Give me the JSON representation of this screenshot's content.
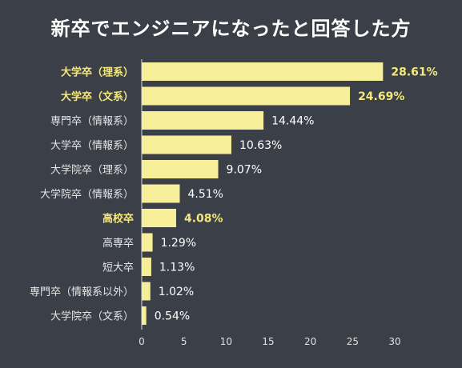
{
  "chart_data": {
    "type": "bar",
    "orientation": "horizontal",
    "title": "新卒でエンジニアになったと回答した方",
    "categories": [
      "大学卒（理系）",
      "大学卒（文系）",
      "専門卒（情報系）",
      "大学卒（情報系）",
      "大学院卒（理系）",
      "大学院卒（情報系）",
      "高校卒",
      "高専卒",
      "短大卒",
      "専門卒（情報系以外）",
      "大学院卒（文系）"
    ],
    "values": [
      28.61,
      24.69,
      14.44,
      10.63,
      9.07,
      4.51,
      4.08,
      1.29,
      1.13,
      1.02,
      0.54
    ],
    "value_labels": [
      "28.61%",
      "24.69%",
      "14.44%",
      "10.63%",
      "9.07%",
      "4.51%",
      "4.08%",
      "1.29%",
      "1.13%",
      "1.02%",
      "0.54%"
    ],
    "highlighted": [
      "大学卒（理系）",
      "大学卒（文系）",
      "高校卒"
    ],
    "xlim": [
      0,
      30
    ],
    "xticks": [
      0,
      5,
      10,
      15,
      20,
      25,
      30
    ],
    "xlabel": "",
    "ylabel": "",
    "grid": false,
    "bar_color": "#f7ee9a",
    "highlight_text_color": "#f5e87a",
    "background": "#3b3f48"
  }
}
